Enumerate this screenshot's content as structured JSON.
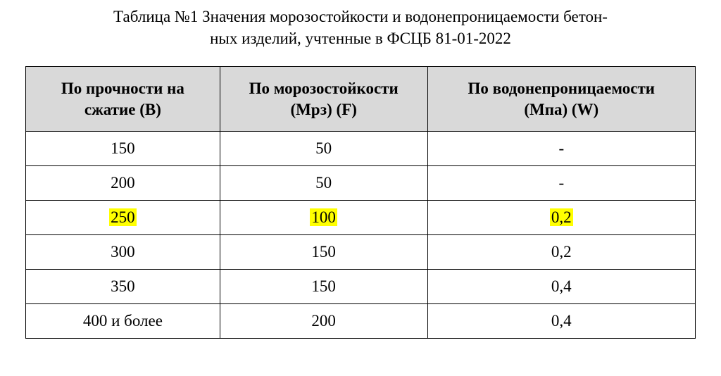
{
  "caption": {
    "line1": "Таблица №1 Значения морозостойкости и водонепроницаемости бетон-",
    "line2": "ных изделий, учтенные в ФСЦБ 81-01-2022"
  },
  "table": {
    "type": "table",
    "header_bg": "#d9d9d9",
    "border_color": "#000000",
    "highlight_bg": "#ffff00",
    "font_family": "Times New Roman",
    "header_fontsize_pt": 17,
    "cell_fontsize_pt": 17,
    "col_widths_pct": [
      29,
      31,
      40
    ],
    "columns": [
      {
        "line1": "По прочности на",
        "line2": "сжатие (В)"
      },
      {
        "line1": "По морозостойкости",
        "line2": "(Мрз) (F)"
      },
      {
        "line1": "По водонепроницаемости",
        "line2": "(Мпа) (W)"
      }
    ],
    "rows": [
      {
        "c0": "150",
        "c1": "50",
        "c2": "-",
        "highlight": false
      },
      {
        "c0": "200",
        "c1": "50",
        "c2": "-",
        "highlight": false
      },
      {
        "c0": "250",
        "c1": "100",
        "c2": "0,2",
        "highlight": true
      },
      {
        "c0": "300",
        "c1": "150",
        "c2": "0,2",
        "highlight": false
      },
      {
        "c0": "350",
        "c1": "150",
        "c2": "0,4",
        "highlight": false
      },
      {
        "c0": "400 и более",
        "c1": "200",
        "c2": "0,4",
        "highlight": false
      }
    ]
  }
}
